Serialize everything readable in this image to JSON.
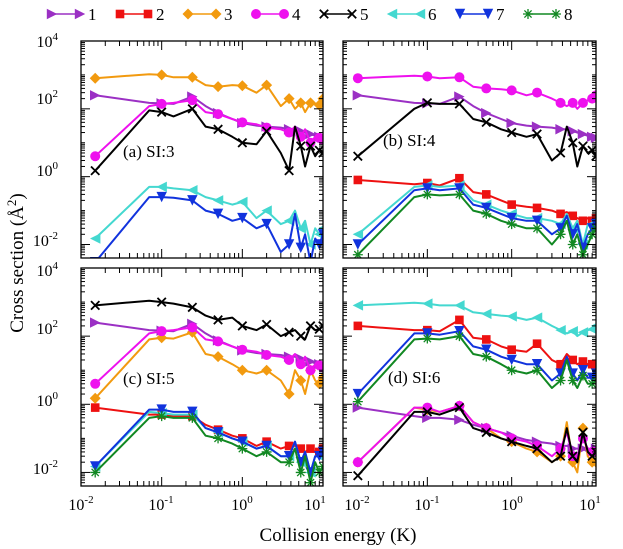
{
  "figure": {
    "xlabel": "Collision energy (K)",
    "ylabel_text": "Cross section (",
    "ylabel_unit": "Å",
    "ylabel_exp": "2",
    "ylabel_close": ")",
    "xtick_labels": [
      {
        "base": "10",
        "exp": "-2"
      },
      {
        "base": "10",
        "exp": "-1"
      },
      {
        "base": "10",
        "exp": "0"
      },
      {
        "base": "10",
        "exp": "1"
      }
    ],
    "ytick_labels": [
      {
        "base": "10",
        "exp": "4"
      },
      {
        "base": "10",
        "exp": "2"
      },
      {
        "base": "10",
        "exp": "0"
      },
      {
        "base": "10",
        "exp": "-2"
      }
    ]
  },
  "legend": [
    {
      "label": "1",
      "color": "#9b30c4",
      "marker": "triangle-right"
    },
    {
      "label": "2",
      "color": "#ee1111",
      "marker": "square"
    },
    {
      "label": "3",
      "color": "#f29a0f",
      "marker": "diamond"
    },
    {
      "label": "4",
      "color": "#ee11ee",
      "marker": "circle"
    },
    {
      "label": "5",
      "color": "#000000",
      "marker": "x"
    },
    {
      "label": "6",
      "color": "#44d8d0",
      "marker": "triangle-left"
    },
    {
      "label": "7",
      "color": "#1133dd",
      "marker": "triangle-down"
    },
    {
      "label": "8",
      "color": "#118822",
      "marker": "asterisk"
    }
  ],
  "chart_data": [
    {
      "type": "line",
      "panel": "a",
      "annotation": "(a) SI:3",
      "xscale": "log",
      "yscale": "log",
      "xlim": [
        0.01,
        10
      ],
      "ylim": [
        0.004,
        10000
      ],
      "x": [
        0.015,
        0.07,
        0.1,
        0.14,
        0.24,
        0.35,
        0.5,
        0.75,
        1.0,
        1.5,
        2.0,
        3.0,
        3.8,
        4.5,
        5.3,
        6.0,
        7.0,
        8.0,
        9.0,
        10.0
      ],
      "series": [
        {
          "name": "1",
          "values": [
            250,
            150,
            145,
            140,
            230,
            120,
            75,
            50,
            38,
            32,
            30,
            28,
            25,
            25,
            22,
            20,
            18,
            16,
            15,
            14
          ]
        },
        {
          "name": "3",
          "values": [
            800,
            1050,
            1000,
            850,
            850,
            500,
            450,
            500,
            480,
            300,
            500,
            120,
            200,
            100,
            150,
            80,
            150,
            140,
            130,
            200
          ]
        },
        {
          "name": "4",
          "values": [
            4,
            120,
            140,
            150,
            180,
            80,
            70,
            50,
            40,
            35,
            28,
            25,
            20,
            30,
            15,
            25,
            10,
            15,
            14,
            12
          ]
        },
        {
          "name": "5",
          "values": [
            1.5,
            90,
            80,
            60,
            100,
            30,
            25,
            15,
            10,
            9,
            22,
            5,
            1.5,
            30,
            8,
            2,
            8,
            4,
            6,
            5
          ]
        },
        {
          "name": "6",
          "values": [
            0.015,
            0.5,
            0.5,
            0.45,
            0.4,
            0.25,
            0.2,
            0.15,
            0.18,
            0.06,
            0.1,
            0.04,
            0.05,
            0.1,
            0.03,
            0.05,
            0.01,
            0.03,
            0.02,
            0.03
          ]
        },
        {
          "name": "7",
          "values": [
            0.003,
            0.25,
            0.25,
            0.24,
            0.2,
            0.1,
            0.08,
            0.05,
            0.06,
            0.03,
            0.04,
            0.006,
            0.01,
            0.08,
            0.008,
            0.02,
            0.003,
            0.015,
            0.01,
            0.02
          ]
        }
      ]
    },
    {
      "type": "line",
      "panel": "b",
      "annotation": "(b) SI:4",
      "xscale": "log",
      "yscale": "log",
      "xlim": [
        0.01,
        10
      ],
      "ylim": [
        0.004,
        10000
      ],
      "x": [
        0.015,
        0.07,
        0.1,
        0.14,
        0.24,
        0.35,
        0.5,
        0.75,
        1.0,
        1.5,
        2.0,
        3.0,
        3.8,
        4.5,
        5.3,
        6.0,
        7.0,
        8.0,
        9.0,
        10.0
      ],
      "series": [
        {
          "name": "1",
          "values": [
            250,
            150,
            145,
            140,
            230,
            120,
            75,
            50,
            38,
            32,
            30,
            28,
            25,
            25,
            22,
            20,
            18,
            16,
            15,
            14
          ]
        },
        {
          "name": "2",
          "values": [
            0.8,
            0.6,
            0.65,
            0.55,
            0.9,
            0.35,
            0.3,
            0.2,
            0.15,
            0.13,
            0.12,
            0.1,
            0.08,
            0.09,
            0.07,
            0.06,
            0.05,
            0.06,
            0.05,
            0.06
          ]
        },
        {
          "name": "4",
          "values": [
            800,
            950,
            900,
            800,
            850,
            450,
            400,
            380,
            350,
            250,
            300,
            200,
            150,
            120,
            150,
            100,
            150,
            180,
            200,
            250
          ]
        },
        {
          "name": "5",
          "values": [
            4,
            100,
            150,
            140,
            140,
            50,
            40,
            25,
            20,
            15,
            18,
            3,
            5,
            30,
            10,
            2,
            8,
            5,
            6,
            4
          ]
        },
        {
          "name": "6",
          "values": [
            0.02,
            0.5,
            0.55,
            0.5,
            0.55,
            0.2,
            0.15,
            0.1,
            0.08,
            0.06,
            0.06,
            0.05,
            0.04,
            0.08,
            0.03,
            0.05,
            0.01,
            0.04,
            0.04,
            0.05
          ]
        },
        {
          "name": "7",
          "values": [
            0.01,
            0.4,
            0.45,
            0.4,
            0.45,
            0.15,
            0.12,
            0.08,
            0.06,
            0.05,
            0.05,
            0.02,
            0.03,
            0.07,
            0.02,
            0.04,
            0.008,
            0.02,
            0.03,
            0.04
          ]
        },
        {
          "name": "8",
          "values": [
            0.005,
            0.25,
            0.3,
            0.28,
            0.3,
            0.1,
            0.08,
            0.05,
            0.04,
            0.03,
            0.03,
            0.01,
            0.02,
            0.05,
            0.01,
            0.02,
            0.005,
            0.01,
            0.02,
            0.03
          ]
        }
      ]
    },
    {
      "type": "line",
      "panel": "c",
      "annotation": "(c) SI:5",
      "xscale": "log",
      "yscale": "log",
      "xlim": [
        0.01,
        10
      ],
      "ylim": [
        0.004,
        10000
      ],
      "x": [
        0.015,
        0.07,
        0.1,
        0.14,
        0.24,
        0.35,
        0.5,
        0.75,
        1.0,
        1.5,
        2.0,
        3.0,
        3.8,
        4.5,
        5.3,
        6.0,
        7.0,
        8.0,
        9.0,
        10.0
      ],
      "series": [
        {
          "name": "1",
          "values": [
            250,
            150,
            145,
            140,
            230,
            120,
            75,
            50,
            38,
            32,
            30,
            28,
            25,
            25,
            22,
            20,
            18,
            16,
            15,
            14
          ]
        },
        {
          "name": "2",
          "values": [
            0.8,
            0.5,
            0.5,
            0.45,
            0.45,
            0.25,
            0.18,
            0.12,
            0.1,
            0.06,
            0.08,
            0.05,
            0.06,
            0.06,
            0.05,
            0.04,
            0.05,
            0.04,
            0.04,
            0.05
          ]
        },
        {
          "name": "3",
          "values": [
            1.5,
            80,
            90,
            85,
            130,
            30,
            25,
            15,
            10,
            8,
            10,
            5,
            2,
            10,
            5,
            2,
            10,
            5,
            4,
            6
          ]
        },
        {
          "name": "4",
          "values": [
            4,
            120,
            140,
            150,
            180,
            80,
            70,
            50,
            40,
            35,
            28,
            25,
            20,
            30,
            15,
            25,
            10,
            15,
            14,
            12
          ]
        },
        {
          "name": "5",
          "values": [
            800,
            1100,
            1000,
            900,
            700,
            400,
            300,
            350,
            200,
            150,
            220,
            100,
            130,
            150,
            100,
            80,
            200,
            150,
            160,
            200
          ]
        },
        {
          "name": "6",
          "values": [
            0.015,
            0.6,
            0.55,
            0.5,
            0.5,
            0.2,
            0.15,
            0.1,
            0.08,
            0.05,
            0.06,
            0.03,
            0.03,
            0.08,
            0.02,
            0.04,
            0.01,
            0.03,
            0.03,
            0.04
          ]
        },
        {
          "name": "7",
          "values": [
            0.015,
            0.7,
            0.7,
            0.6,
            0.6,
            0.2,
            0.15,
            0.1,
            0.08,
            0.05,
            0.06,
            0.03,
            0.03,
            0.08,
            0.02,
            0.04,
            0.01,
            0.03,
            0.03,
            0.04
          ]
        },
        {
          "name": "8",
          "values": [
            0.01,
            0.4,
            0.45,
            0.4,
            0.4,
            0.12,
            0.1,
            0.07,
            0.05,
            0.03,
            0.04,
            0.02,
            0.02,
            0.05,
            0.01,
            0.03,
            0.005,
            0.02,
            0.01,
            0.015
          ]
        }
      ]
    },
    {
      "type": "line",
      "panel": "d",
      "annotation": "(d) SI:6",
      "xscale": "log",
      "yscale": "log",
      "xlim": [
        0.01,
        10
      ],
      "ylim": [
        0.004,
        10000
      ],
      "x": [
        0.015,
        0.07,
        0.1,
        0.14,
        0.24,
        0.35,
        0.5,
        0.75,
        1.0,
        1.5,
        2.0,
        3.0,
        3.8,
        4.5,
        5.3,
        6.0,
        7.0,
        8.0,
        9.0,
        10.0
      ],
      "series": [
        {
          "name": "1",
          "values": [
            0.8,
            0.45,
            0.4,
            0.4,
            0.35,
            0.25,
            0.2,
            0.15,
            0.12,
            0.09,
            0.08,
            0.07,
            0.06,
            0.06,
            0.05,
            0.05,
            0.05,
            0.04,
            0.04,
            0.05
          ]
        },
        {
          "name": "2",
          "values": [
            200,
            150,
            150,
            140,
            300,
            90,
            80,
            50,
            40,
            35,
            60,
            20,
            15,
            30,
            20,
            15,
            18,
            15,
            15,
            15
          ]
        },
        {
          "name": "3",
          "values": [
            0.02,
            0.8,
            0.7,
            0.6,
            0.9,
            0.3,
            0.2,
            0.1,
            0.08,
            0.05,
            0.04,
            0.02,
            0.03,
            0.3,
            0.02,
            0.01,
            0.2,
            0.03,
            0.02,
            0.02
          ]
        },
        {
          "name": "4",
          "values": [
            0.02,
            0.8,
            0.8,
            0.6,
            0.9,
            0.3,
            0.2,
            0.15,
            0.1,
            0.08,
            0.06,
            0.03,
            0.05,
            0.15,
            0.03,
            0.03,
            0.1,
            0.05,
            0.04,
            0.04
          ]
        },
        {
          "name": "5",
          "values": [
            0.008,
            0.6,
            0.6,
            0.5,
            0.8,
            0.2,
            0.15,
            0.1,
            0.08,
            0.06,
            0.05,
            0.02,
            0.03,
            0.2,
            0.03,
            0.02,
            0.15,
            0.04,
            0.03,
            0.04
          ]
        },
        {
          "name": "6",
          "values": [
            800,
            950,
            900,
            800,
            800,
            500,
            450,
            400,
            380,
            300,
            350,
            200,
            150,
            120,
            140,
            100,
            130,
            150,
            160,
            200
          ]
        },
        {
          "name": "7",
          "values": [
            2,
            120,
            120,
            110,
            140,
            50,
            40,
            25,
            20,
            15,
            15,
            5,
            8,
            25,
            8,
            5,
            10,
            6,
            6,
            8
          ]
        },
        {
          "name": "8",
          "values": [
            1.2,
            80,
            85,
            80,
            100,
            30,
            25,
            15,
            10,
            8,
            10,
            3,
            5,
            20,
            5,
            3,
            7,
            4,
            4,
            5
          ]
        }
      ]
    }
  ]
}
